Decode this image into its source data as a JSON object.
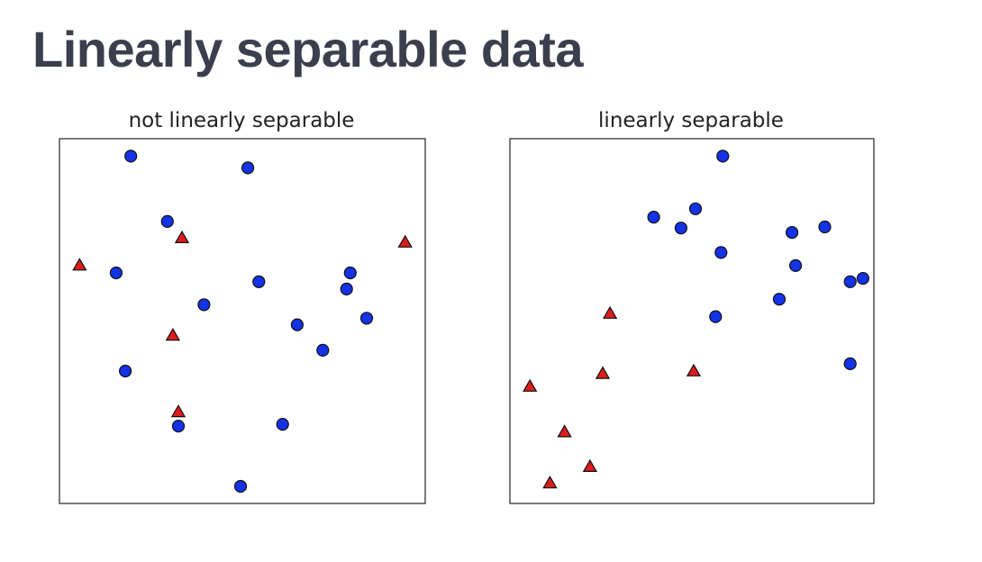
{
  "slide": {
    "title": "Linearly separable data"
  },
  "chart_data": [
    {
      "type": "scatter",
      "title": "not linearly separable",
      "xlim": [
        0,
        1
      ],
      "ylim": [
        0,
        1
      ],
      "axes_ticks": false,
      "grid": false,
      "series": [
        {
          "marker": "circle",
          "color": "#1432e6",
          "points": [
            [
              0.195,
              0.952
            ],
            [
              0.515,
              0.92
            ],
            [
              0.295,
              0.773
            ],
            [
              0.155,
              0.632
            ],
            [
              0.545,
              0.608
            ],
            [
              0.395,
              0.545
            ],
            [
              0.795,
              0.632
            ],
            [
              0.785,
              0.588
            ],
            [
              0.84,
              0.508
            ],
            [
              0.65,
              0.49
            ],
            [
              0.72,
              0.42
            ],
            [
              0.18,
              0.363
            ],
            [
              0.325,
              0.212
            ],
            [
              0.61,
              0.217
            ],
            [
              0.495,
              0.047
            ]
          ]
        },
        {
          "marker": "triangle",
          "color": "#dd1c1c",
          "points": [
            [
              0.335,
              0.727
            ],
            [
              0.945,
              0.715
            ],
            [
              0.055,
              0.652
            ],
            [
              0.31,
              0.46
            ],
            [
              0.325,
              0.25
            ]
          ]
        }
      ]
    },
    {
      "type": "scatter",
      "title": "linearly separable",
      "xlim": [
        0,
        1
      ],
      "ylim": [
        0,
        1
      ],
      "axes_ticks": false,
      "grid": false,
      "series": [
        {
          "marker": "circle",
          "color": "#1432e6",
          "points": [
            [
              0.585,
              0.952
            ],
            [
              0.395,
              0.785
            ],
            [
              0.47,
              0.755
            ],
            [
              0.51,
              0.808
            ],
            [
              0.58,
              0.688
            ],
            [
              0.775,
              0.743
            ],
            [
              0.865,
              0.758
            ],
            [
              0.785,
              0.652
            ],
            [
              0.935,
              0.608
            ],
            [
              0.97,
              0.617
            ],
            [
              0.74,
              0.56
            ],
            [
              0.565,
              0.512
            ],
            [
              0.935,
              0.383
            ]
          ]
        },
        {
          "marker": "triangle",
          "color": "#dd1c1c",
          "points": [
            [
              0.275,
              0.52
            ],
            [
              0.505,
              0.362
            ],
            [
              0.255,
              0.355
            ],
            [
              0.055,
              0.32
            ],
            [
              0.15,
              0.195
            ],
            [
              0.22,
              0.1
            ],
            [
              0.11,
              0.055
            ]
          ]
        }
      ]
    }
  ]
}
